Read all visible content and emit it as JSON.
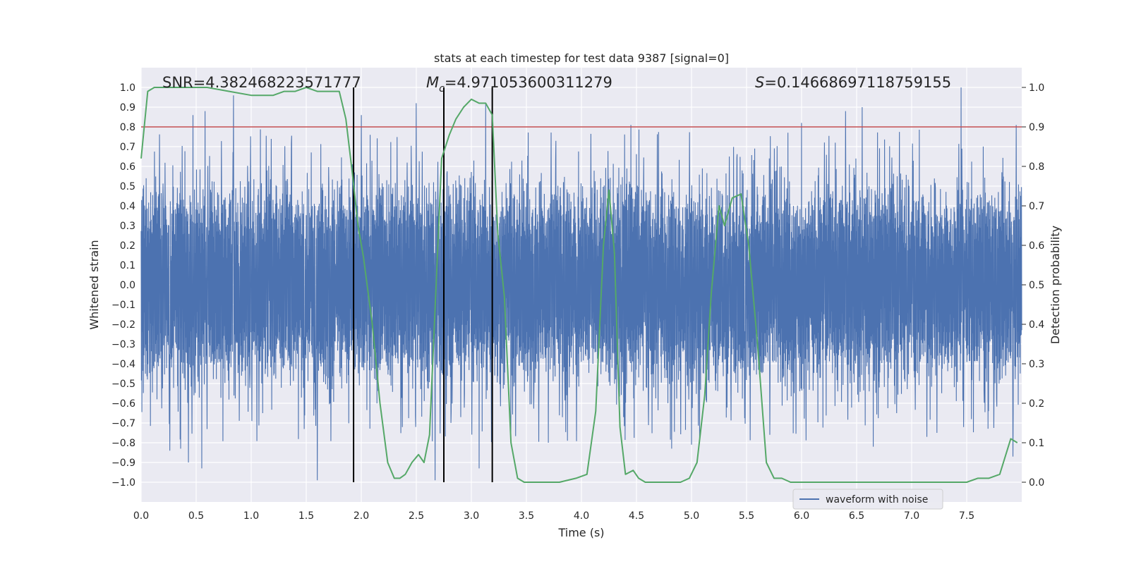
{
  "chart_data": {
    "type": "line",
    "title": "stats at each timestep for test data 9387 [signal=0]",
    "xlabel": "Time (s)",
    "ylabel": "Whitened strain",
    "y2label": "Detection probability",
    "xlim": [
      0.0,
      8.0
    ],
    "ylim": [
      -1.1,
      1.1
    ],
    "y2lim": [
      -0.05,
      1.05
    ],
    "xticks": [
      "0.0",
      "0.5",
      "1.0",
      "1.5",
      "2.0",
      "2.5",
      "3.0",
      "3.5",
      "4.0",
      "4.5",
      "5.0",
      "5.5",
      "6.0",
      "6.5",
      "7.0",
      "7.5"
    ],
    "yticks": [
      "1.0",
      "0.9",
      "0.8",
      "0.7",
      "0.6",
      "0.5",
      "0.4",
      "0.3",
      "0.2",
      "0.1",
      "0.0",
      "−0.1",
      "−0.2",
      "−0.3",
      "−0.4",
      "−0.5",
      "−0.6",
      "−0.7",
      "−0.8",
      "−0.9",
      "−1.0"
    ],
    "y2ticks": [
      "1.0",
      "0.9",
      "0.8",
      "0.7",
      "0.6",
      "0.5",
      "0.4",
      "0.3",
      "0.2",
      "0.1",
      "0.0"
    ],
    "grid": true,
    "legend": {
      "placement": "lower-center-right",
      "entries": [
        "waveform with noise"
      ]
    },
    "annotations": {
      "snr": "SNR=4.382468223571777",
      "mc_prefix": "M",
      "mc_sub": "c",
      "mc_value": "=4.971053600311279",
      "s_prefix": "S",
      "s_value": "=0.14668697118759155"
    },
    "threshold": {
      "value": 0.9,
      "axis": "y2",
      "color": "#c44e52"
    },
    "vertical_lines": [
      1.93,
      2.75,
      3.19
    ],
    "noise_series": {
      "name": "waveform with noise",
      "color": "#4c72b0",
      "typical_amplitude": 0.43,
      "samples": 3500,
      "peaks": [
        {
          "x": 0.84,
          "y": 0.96
        },
        {
          "x": 0.58,
          "y": 0.88
        },
        {
          "x": 0.47,
          "y": 0.86
        },
        {
          "x": 2.5,
          "y": 0.92
        },
        {
          "x": 3.13,
          "y": 0.92
        },
        {
          "x": 6.55,
          "y": 0.9
        },
        {
          "x": 6.4,
          "y": 0.88
        },
        {
          "x": 7.45,
          "y": 1.0
        },
        {
          "x": 6.0,
          "y": 0.82
        },
        {
          "x": 4.45,
          "y": 0.81
        },
        {
          "x": 7.95,
          "y": 0.81
        },
        {
          "x": 2.0,
          "y": 0.86
        },
        {
          "x": 1.6,
          "y": -0.99
        },
        {
          "x": 2.67,
          "y": -0.99
        },
        {
          "x": 0.55,
          "y": -0.93
        },
        {
          "x": 0.43,
          "y": -0.9
        },
        {
          "x": 0.26,
          "y": -0.84
        },
        {
          "x": 0.36,
          "y": -0.83
        },
        {
          "x": 4.82,
          "y": -0.83
        },
        {
          "x": 6.65,
          "y": -0.82
        },
        {
          "x": 3.07,
          "y": -0.93
        },
        {
          "x": 7.92,
          "y": -0.87
        },
        {
          "x": 3.7,
          "y": -0.8
        },
        {
          "x": 5.0,
          "y": -0.81
        }
      ]
    },
    "probability_series": {
      "color": "#55a868",
      "x": [
        0.0,
        0.06,
        0.12,
        0.2,
        0.4,
        0.6,
        0.8,
        1.0,
        1.2,
        1.3,
        1.4,
        1.5,
        1.6,
        1.7,
        1.8,
        1.86,
        1.92,
        1.97,
        2.02,
        2.1,
        2.17,
        2.24,
        2.3,
        2.35,
        2.4,
        2.46,
        2.52,
        2.57,
        2.62,
        2.68,
        2.73,
        2.8,
        2.86,
        2.93,
        3.0,
        3.07,
        3.13,
        3.19,
        3.24,
        3.3,
        3.36,
        3.42,
        3.48,
        3.55,
        3.6,
        3.8,
        3.95,
        4.05,
        4.13,
        4.2,
        4.25,
        4.3,
        4.35,
        4.4,
        4.47,
        4.52,
        4.58,
        4.65,
        4.75,
        4.9,
        4.98,
        5.05,
        5.12,
        5.18,
        5.25,
        5.3,
        5.37,
        5.45,
        5.52,
        5.6,
        5.68,
        5.75,
        5.82,
        5.9,
        6.0,
        6.2,
        6.5,
        6.6,
        6.8,
        7.1,
        7.3,
        7.4,
        7.5,
        7.6,
        7.7,
        7.8,
        7.9,
        7.96
      ],
      "y": [
        0.82,
        0.99,
        1.0,
        1.0,
        1.0,
        1.0,
        0.99,
        0.98,
        0.98,
        0.99,
        0.99,
        1.0,
        0.99,
        0.99,
        0.99,
        0.92,
        0.78,
        0.65,
        0.57,
        0.4,
        0.2,
        0.05,
        0.01,
        0.01,
        0.02,
        0.05,
        0.07,
        0.05,
        0.12,
        0.5,
        0.82,
        0.88,
        0.92,
        0.95,
        0.97,
        0.96,
        0.96,
        0.93,
        0.63,
        0.47,
        0.1,
        0.01,
        0.0,
        0.0,
        0.0,
        0.0,
        0.01,
        0.02,
        0.18,
        0.6,
        0.74,
        0.58,
        0.14,
        0.02,
        0.03,
        0.01,
        0.0,
        0.0,
        0.0,
        0.0,
        0.01,
        0.05,
        0.22,
        0.48,
        0.7,
        0.65,
        0.72,
        0.73,
        0.6,
        0.35,
        0.05,
        0.01,
        0.01,
        0.0,
        0.0,
        0.0,
        0.0,
        0.0,
        0.0,
        0.0,
        0.0,
        0.0,
        0.0,
        0.01,
        0.01,
        0.02,
        0.11,
        0.1
      ]
    }
  }
}
